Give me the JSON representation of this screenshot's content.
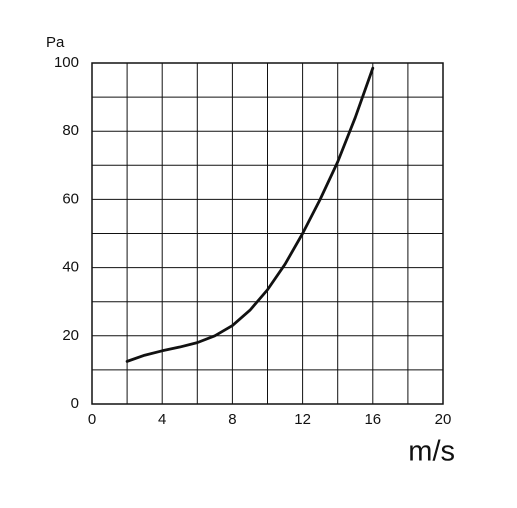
{
  "chart_data": {
    "type": "line",
    "y_label": "Pa",
    "x_label": "m/s",
    "x": [
      2,
      3,
      4,
      5,
      6,
      7,
      8,
      9,
      10,
      11,
      12,
      13,
      14,
      15,
      16
    ],
    "series": [
      {
        "color": "#111111",
        "values": [
          12.5,
          14.3,
          15.6,
          16.7,
          18,
          20,
          23,
          27.5,
          33.5,
          41,
          50,
          60,
          71,
          84,
          98.5
        ]
      }
    ],
    "xlim": [
      0,
      20
    ],
    "ylim": [
      0,
      100
    ],
    "xticks": [
      0,
      4,
      8,
      12,
      16,
      20
    ],
    "yticks": [
      0,
      20,
      40,
      60,
      80,
      100
    ],
    "xgrid": [
      0,
      2,
      4,
      6,
      8,
      10,
      12,
      14,
      16,
      18,
      20
    ],
    "ygrid": [
      0,
      10,
      20,
      30,
      40,
      50,
      60,
      70,
      80,
      90,
      100
    ],
    "grid": true
  }
}
